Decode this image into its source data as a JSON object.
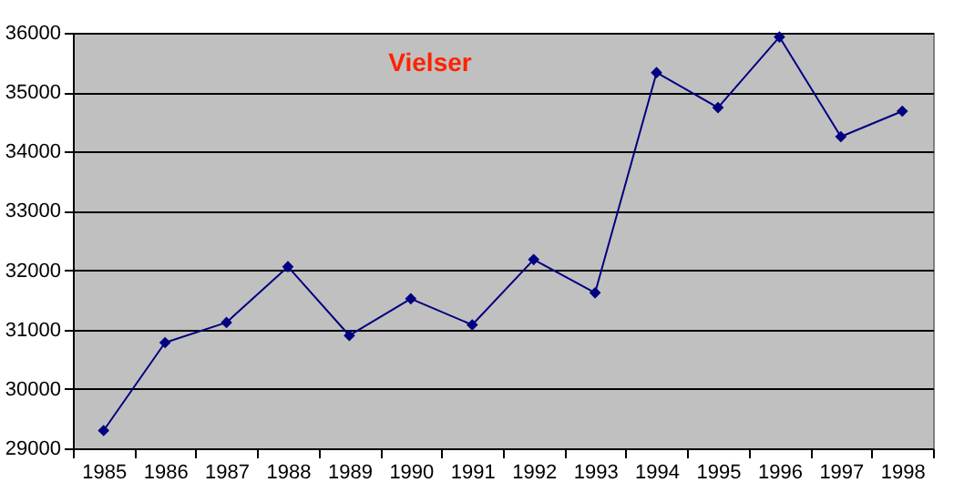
{
  "chart_data": {
    "type": "line",
    "title": "Vielser",
    "categories": [
      "1985",
      "1986",
      "1987",
      "1988",
      "1989",
      "1990",
      "1991",
      "1992",
      "1993",
      "1994",
      "1995",
      "1996",
      "1997",
      "1998"
    ],
    "series": [
      {
        "color": "#000080",
        "values": [
          29300,
          30780,
          31120,
          32060,
          30900,
          31520,
          31080,
          32180,
          31620,
          35330,
          34740,
          35930,
          34250,
          34680
        ]
      }
    ],
    "ylim": [
      29000,
      36000
    ],
    "yticks": [
      29000,
      30000,
      31000,
      32000,
      33000,
      34000,
      35000,
      36000
    ],
    "grid": "y",
    "marker": "diamond",
    "line_style": "solid",
    "legend": false
  }
}
